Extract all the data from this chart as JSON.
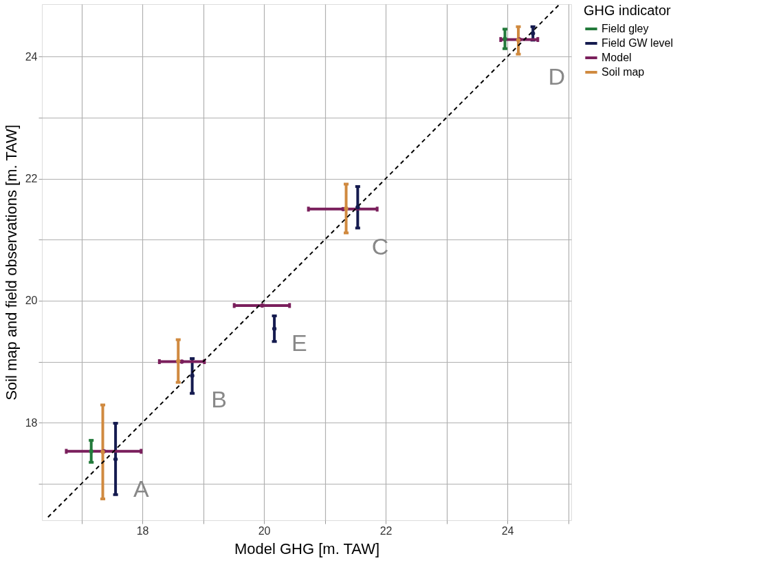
{
  "chart_data": {
    "type": "scatter",
    "xlabel": "Model GHG [m. TAW]",
    "ylabel": "Soil map and field observations [m. TAW]",
    "legend_title": "GHG indicator",
    "xlim": [
      16.35,
      25.05
    ],
    "ylim": [
      16.4,
      24.86
    ],
    "xticks": [
      {
        "value": 17,
        "label": null
      },
      18,
      {
        "value": 19,
        "label": null
      },
      20,
      {
        "value": 21,
        "label": null
      },
      22,
      {
        "value": 23,
        "label": null
      },
      24,
      {
        "value": 25,
        "label": null
      }
    ],
    "yticks": [
      {
        "value": 17,
        "label": null
      },
      18,
      {
        "value": 19,
        "label": null
      },
      20,
      {
        "value": 21,
        "label": null
      },
      22,
      {
        "value": 23,
        "label": null
      },
      24
    ],
    "grid": true,
    "legend": "right",
    "marker": "circle",
    "series": [
      {
        "name": "Field gley",
        "color": "#237a3b",
        "x": [
          17.16,
          23.96
        ],
        "values": [
          17.53,
          24.29
        ],
        "errors": [
          [
            17.35,
            17.71
          ],
          [
            24.13,
            24.45
          ]
        ]
      },
      {
        "name": "Field GW level",
        "color": "#151b4f",
        "x": [
          17.56,
          18.82,
          20.17,
          21.54,
          24.42
        ],
        "values": [
          17.4,
          18.77,
          19.54,
          21.53,
          24.38
        ],
        "errors": [
          [
            16.82,
            17.99
          ],
          [
            18.48,
            19.05
          ],
          [
            19.33,
            19.75
          ],
          [
            21.19,
            21.87
          ],
          [
            24.27,
            24.49
          ]
        ]
      },
      {
        "name": "Model",
        "color": "#7a1f5c",
        "x": [
          17.37,
          18.65,
          19.97,
          21.3,
          24.2
        ],
        "values": [
          17.53,
          19.0,
          19.92,
          21.5,
          24.28
        ],
        "xerrors": [
          [
            16.75,
            17.98
          ],
          [
            18.28,
            19.02
          ],
          [
            19.51,
            20.42
          ],
          [
            20.73,
            21.86
          ],
          [
            23.89,
            24.5
          ]
        ]
      },
      {
        "name": "Soil map",
        "color": "#d08a40",
        "x": [
          17.35,
          18.59,
          21.35,
          24.18
        ],
        "values": [
          17.52,
          19.01,
          21.51,
          24.27
        ],
        "errors": [
          [
            16.75,
            18.29
          ],
          [
            18.66,
            19.36
          ],
          [
            21.11,
            21.91
          ],
          [
            24.04,
            24.49
          ]
        ]
      },
      {
        "type": "line",
        "color": "#000000",
        "line_style": "dashed",
        "marker": "none",
        "x": [
          16.45,
          24.85
        ],
        "values": [
          16.45,
          24.85
        ]
      }
    ],
    "annotations": [
      "A",
      "B",
      "E",
      "C",
      "D"
    ]
  }
}
